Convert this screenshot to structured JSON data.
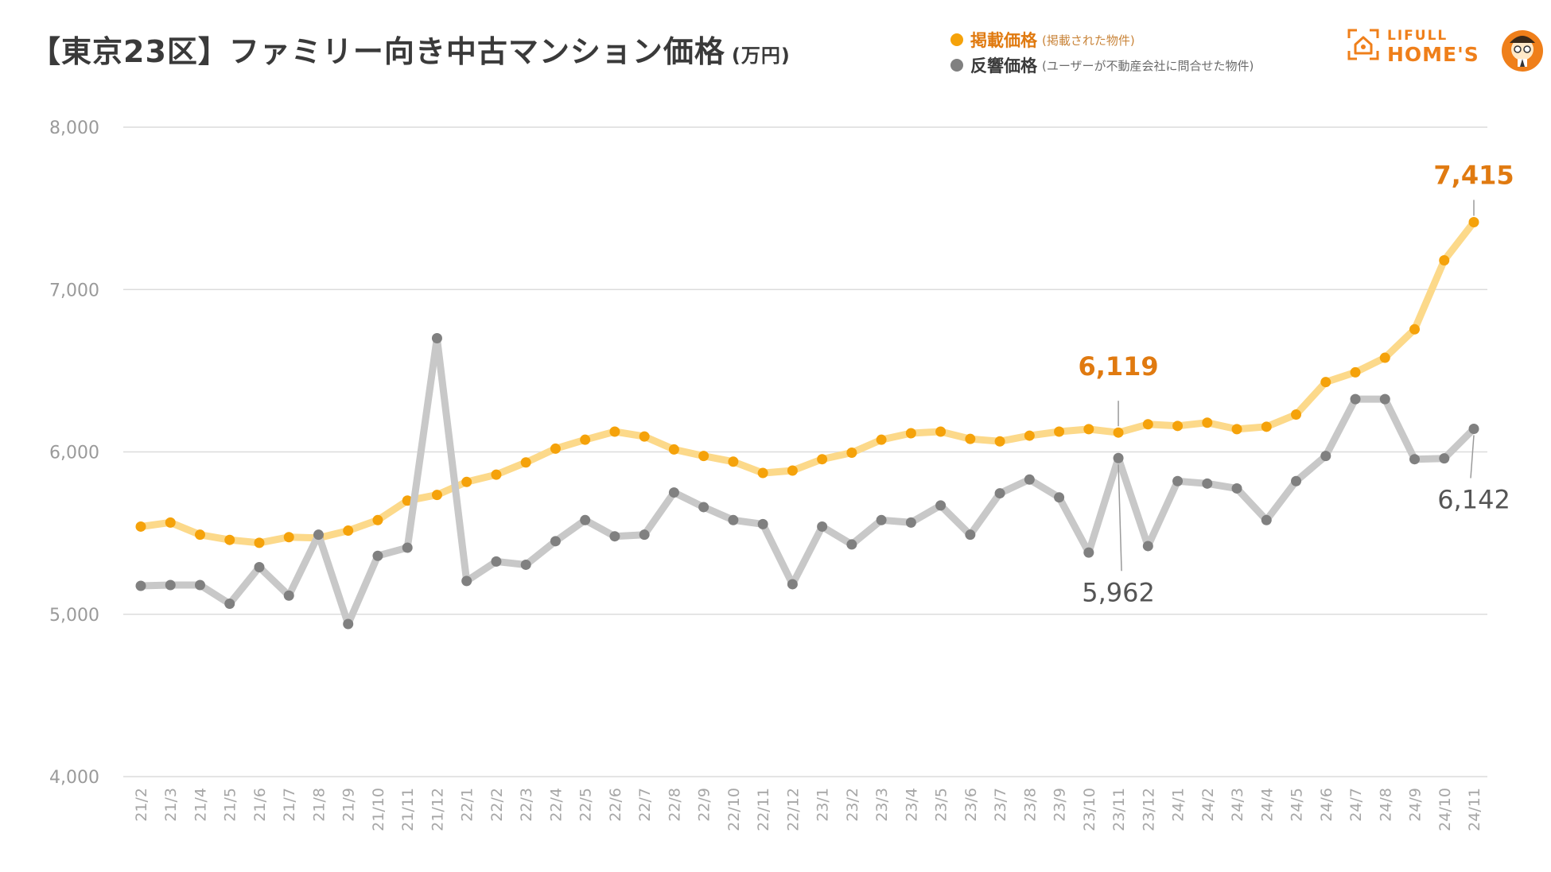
{
  "title": {
    "main": "【東京23区】ファミリー向き中古マンション価格",
    "unit": "(万円)"
  },
  "legend": {
    "listed": {
      "label": "掲載価格",
      "note": "(掲載された物件)",
      "color": "#f5a20a"
    },
    "response": {
      "label": "反響価格",
      "note": "(ユーザーが不動産会社に問合せた物件)",
      "color": "#808080"
    }
  },
  "logo": {
    "line1": "LIFULL",
    "line2": "HOME'S"
  },
  "chart_data": {
    "type": "line",
    "title": "【東京23区】ファミリー向き中古マンション価格",
    "ylabel": "万円",
    "ylim": [
      4000,
      8000
    ],
    "yticks": [
      4000,
      5000,
      6000,
      7000,
      8000
    ],
    "ytick_labels": [
      "4,000",
      "5,000",
      "6,000",
      "7,000",
      "8,000"
    ],
    "grid": true,
    "legend_position": "top-right",
    "categories": [
      "21/2",
      "21/3",
      "21/4",
      "21/5",
      "21/6",
      "21/7",
      "21/8",
      "21/9",
      "21/10",
      "21/11",
      "21/12",
      "22/1",
      "22/2",
      "22/3",
      "22/4",
      "22/5",
      "22/6",
      "22/7",
      "22/8",
      "22/9",
      "22/10",
      "22/11",
      "22/12",
      "23/1",
      "23/2",
      "23/3",
      "23/4",
      "23/5",
      "23/6",
      "23/7",
      "23/8",
      "23/9",
      "23/10",
      "23/11",
      "23/12",
      "24/1",
      "24/2",
      "24/3",
      "24/4",
      "24/5",
      "24/6",
      "24/7",
      "24/8",
      "24/9",
      "24/10",
      "24/11"
    ],
    "series": [
      {
        "name": "掲載価格",
        "color": "#f5a20a",
        "line_color": "#fcd98a",
        "values": [
          5540,
          5565,
          5490,
          5458,
          5440,
          5475,
          5470,
          5515,
          5580,
          5700,
          5735,
          5815,
          5860,
          5935,
          6020,
          6075,
          6125,
          6095,
          6015,
          5975,
          5940,
          5870,
          5885,
          5955,
          5995,
          6075,
          6115,
          6125,
          6080,
          6065,
          6100,
          6125,
          6140,
          6119,
          6170,
          6160,
          6180,
          6140,
          6155,
          6230,
          6430,
          6490,
          6580,
          6755,
          7180,
          7415
        ]
      },
      {
        "name": "反響価格",
        "color": "#808080",
        "line_color": "#c8c8c8",
        "values": [
          5175,
          5180,
          5180,
          5065,
          5290,
          5115,
          5490,
          4940,
          5360,
          5410,
          6700,
          5205,
          5325,
          5305,
          5450,
          5580,
          5480,
          5490,
          5750,
          5660,
          5580,
          5555,
          5185,
          5540,
          5430,
          5580,
          5565,
          5670,
          5490,
          5745,
          5830,
          5720,
          5380,
          5962,
          5420,
          5820,
          5805,
          5775,
          5580,
          5820,
          5975,
          6325,
          6325,
          5955,
          5960,
          6142
        ]
      }
    ],
    "annotations": [
      {
        "series": "掲載価格",
        "category": "23/11",
        "label": "6,119"
      },
      {
        "series": "反響価格",
        "category": "23/11",
        "label": "5,962"
      },
      {
        "series": "掲載価格",
        "category": "24/11",
        "label": "7,415"
      },
      {
        "series": "反響価格",
        "category": "24/11",
        "label": "6,142"
      }
    ]
  }
}
